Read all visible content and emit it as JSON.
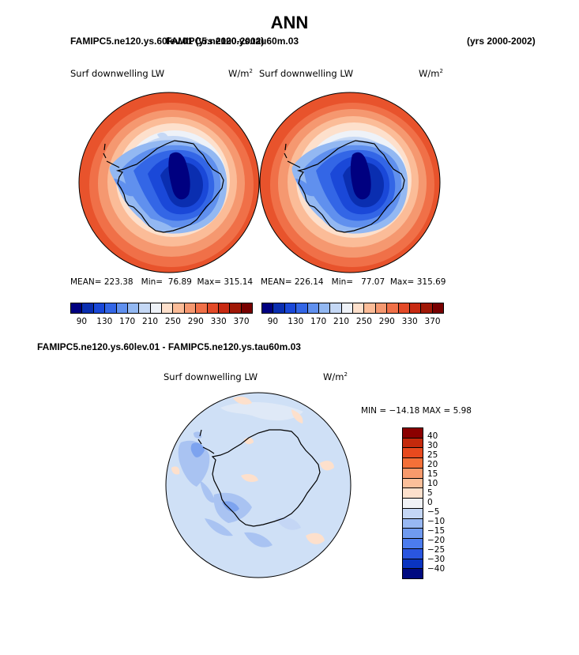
{
  "title": "ANN",
  "header": {
    "case1": "FAMIPC5.ne120.ys.60lev.01 (yrs 2000-2002)",
    "case2": "FAMIPC5.ne120.ys.tau60m.03",
    "years2": "(yrs 2000-2002)",
    "diff_title": "FAMIPC5.ne120.ys.60lev.01 - FAMIPC5.ne120.ys.tau60m.03"
  },
  "panels": [
    {
      "variable": "Surf downwelling LW",
      "units_base": "W/m",
      "units_exp": "2",
      "mean_label": "MEAN=",
      "mean": "223.38",
      "min_label": "Min=",
      "min": "76.89",
      "max_label": "Max=",
      "max": "315.14"
    },
    {
      "variable": "Surf downwelling LW",
      "units_base": "W/m",
      "units_exp": "2",
      "mean_label": "MEAN=",
      "mean": "226.14",
      "min_label": "Min=",
      "min": "77.07",
      "max_label": "Max=",
      "max": "315.69"
    }
  ],
  "diff_panel": {
    "variable": "Surf downwelling LW",
    "units_base": "W/m",
    "units_exp": "2",
    "minmax": "MIN = −14.18 MAX =   5.98"
  },
  "colorbar_main": {
    "colors": [
      "#000080",
      "#0a2eb0",
      "#1a48d8",
      "#3366e6",
      "#6090ee",
      "#93b8f2",
      "#c5d8f5",
      "#eef2f8",
      "#fde0cc",
      "#fbbc98",
      "#f59870",
      "#f07048",
      "#e34a28",
      "#c82a12",
      "#a01806",
      "#780000"
    ],
    "ticks": [
      "90",
      "130",
      "170",
      "210",
      "250",
      "290",
      "330",
      "370"
    ]
  },
  "colorbar_diff": {
    "colors": [
      "#8b0000",
      "#c42a0c",
      "#e84a1e",
      "#f47038",
      "#f89a6c",
      "#fbbf9a",
      "#fde0cc",
      "#f0f2f6",
      "#c4d6f5",
      "#98b8f3",
      "#6f9af0",
      "#4c7cee",
      "#2a56e0",
      "#0a34c0",
      "#000a80"
    ],
    "ticks": [
      "40",
      "30",
      "25",
      "20",
      "15",
      "10",
      "5",
      "0",
      "−5",
      "−10",
      "−15",
      "−20",
      "−25",
      "−30",
      "−40"
    ]
  }
}
